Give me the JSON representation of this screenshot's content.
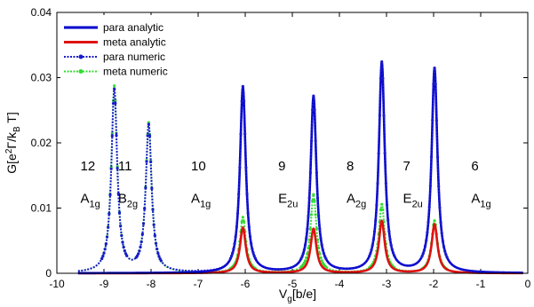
{
  "chart_data": {
    "type": "line",
    "xlabel_main": "V",
    "xlabel_sub": "g",
    "xlabel_rest": "[b/e]",
    "ylabel_parts": [
      "G[e",
      "2",
      "Γ/k",
      "B",
      " T]"
    ],
    "xlim": [
      -10,
      0
    ],
    "ylim": [
      0,
      0.04
    ],
    "xticks": [
      -10,
      -9,
      -8,
      -7,
      -6,
      -5,
      -4,
      -3,
      -2,
      -1,
      0
    ],
    "xtick_labels": [
      "-10",
      "-9",
      "-8",
      "-7",
      "-6",
      "-5",
      "-4",
      "-3",
      "-2",
      "-1",
      "0"
    ],
    "yticks": [
      0,
      0.01,
      0.02,
      0.03,
      0.04
    ],
    "ytick_labels": [
      "0",
      "0.01",
      "0.02",
      "0.03",
      "0.04"
    ],
    "legend_position": "top-left",
    "legend": [
      {
        "label": "para analytic",
        "color": "#0000cc",
        "style": "solid"
      },
      {
        "label": "meta analytic",
        "color": "#dd1111",
        "style": "solid"
      },
      {
        "label": "para numeric",
        "color": "#1a1acc",
        "style": "dotted-marker"
      },
      {
        "label": "meta numeric",
        "color": "#33dd33",
        "style": "dotted-marker"
      }
    ],
    "peak_width": 0.075,
    "x_range": [
      -9.55,
      -0.1
    ],
    "series": [
      {
        "name": "para analytic",
        "color": "#0000cc",
        "peaks": [
          [
            -6.05,
            0.0285
          ],
          [
            -4.55,
            0.027
          ],
          [
            -3.1,
            0.0322
          ],
          [
            -1.98,
            0.0313
          ]
        ]
      },
      {
        "name": "meta analytic",
        "color": "#dd1111",
        "peaks": [
          [
            -6.05,
            0.007
          ],
          [
            -4.55,
            0.0068
          ],
          [
            -3.1,
            0.008
          ],
          [
            -1.98,
            0.0075
          ]
        ]
      },
      {
        "name": "para numeric",
        "color": "#1a1acc",
        "peaks": [
          [
            -8.78,
            0.028
          ],
          [
            -8.05,
            0.0225
          ],
          [
            -6.05,
            0.0285
          ],
          [
            -4.55,
            0.027
          ],
          [
            -3.1,
            0.0322
          ],
          [
            -1.98,
            0.0313
          ]
        ]
      },
      {
        "name": "meta numeric",
        "color": "#33dd33",
        "peaks": [
          [
            -8.78,
            0.0285
          ],
          [
            -8.05,
            0.0228
          ],
          [
            -6.05,
            0.0085
          ],
          [
            -4.55,
            0.012
          ],
          [
            -3.1,
            0.0105
          ],
          [
            -1.98,
            0.008
          ]
        ]
      }
    ],
    "annotations": [
      {
        "number": "12",
        "sym": "A",
        "sub": "1g",
        "x": -9.5
      },
      {
        "number": "11",
        "sym": "B",
        "sub": "2g",
        "x": -8.7
      },
      {
        "number": "10",
        "sym": "A",
        "sub": "1g",
        "x": -7.15
      },
      {
        "number": "9",
        "sym": "E",
        "sub": "2u",
        "x": -5.3
      },
      {
        "number": "8",
        "sym": "A",
        "sub": "2g",
        "x": -3.85
      },
      {
        "number": "7",
        "sym": "E",
        "sub": "2u",
        "x": -2.65
      },
      {
        "number": "6",
        "sym": "A",
        "sub": "1g",
        "x": -1.2
      }
    ],
    "annotation_y_number": 0.0158,
    "annotation_y_sym": 0.0108
  }
}
